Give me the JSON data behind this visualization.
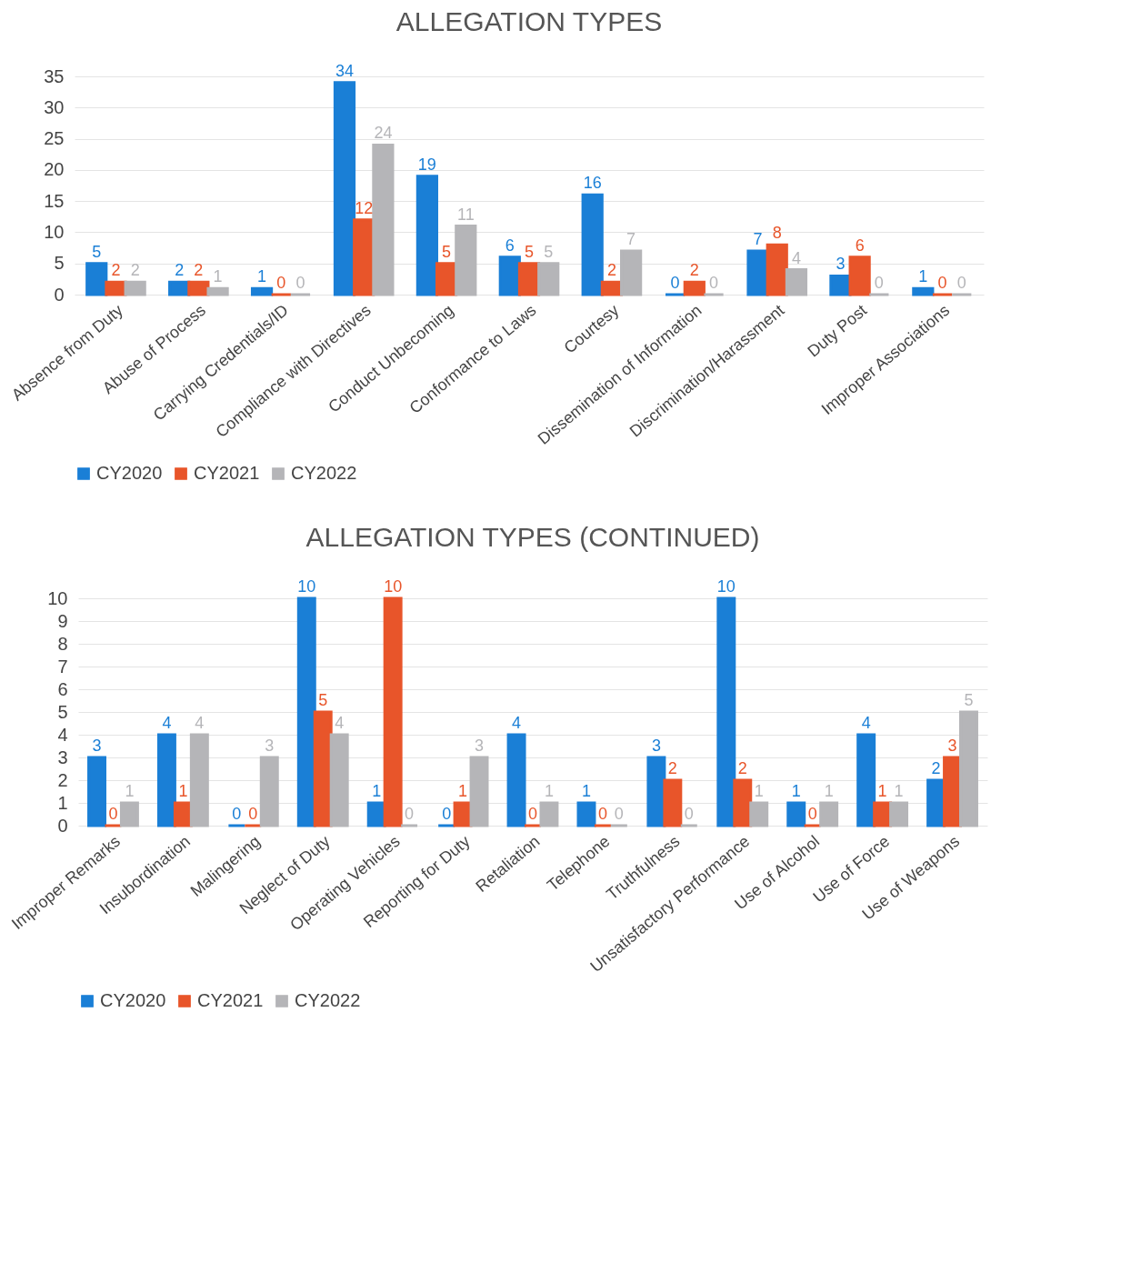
{
  "chart_data": [
    {
      "type": "bar",
      "title": "ALLEGATION TYPES",
      "categories": [
        "Absence from Duty",
        "Abuse of Process",
        "Carrying Credentials/ID",
        "Compliance with Directives",
        "Conduct Unbecoming",
        "Conformance to Laws",
        "Courtesy",
        "Dissemination of Information",
        "Discrimination/Harassment",
        "Duty Post",
        "Improper Associations"
      ],
      "series": [
        {
          "name": "CY2020",
          "color": "#1a7fd6",
          "values": [
            5,
            2,
            1,
            34,
            19,
            6,
            16,
            0,
            7,
            3,
            1
          ]
        },
        {
          "name": "CY2021",
          "color": "#e8552a",
          "values": [
            2,
            2,
            0,
            12,
            5,
            5,
            2,
            2,
            8,
            6,
            0
          ]
        },
        {
          "name": "CY2022",
          "color": "#b5b5b8",
          "values": [
            2,
            1,
            0,
            24,
            11,
            5,
            7,
            0,
            4,
            0,
            0
          ]
        }
      ],
      "ylim": [
        0,
        35
      ],
      "yticks": [
        0,
        5,
        10,
        15,
        20,
        25,
        30,
        35
      ],
      "grid": "y",
      "legend": "bottom",
      "data_labels": true
    },
    {
      "type": "bar",
      "title": "ALLEGATION TYPES (CONTINUED)",
      "categories": [
        "Improper Remarks",
        "Insubordination",
        "Malingering",
        "Neglect of Duty",
        "Operating Vehicles",
        "Reporting for Duty",
        "Retaliation",
        "Telephone",
        "Truthfulness",
        "Unsatisfactory Performance",
        "Use of Alcohol",
        "Use of Force",
        "Use of Weapons"
      ],
      "series": [
        {
          "name": "CY2020",
          "color": "#1a7fd6",
          "values": [
            3,
            4,
            0,
            10,
            1,
            0,
            4,
            1,
            3,
            10,
            1,
            4,
            2
          ]
        },
        {
          "name": "CY2021",
          "color": "#e8552a",
          "values": [
            0,
            1,
            0,
            5,
            10,
            1,
            0,
            0,
            2,
            2,
            0,
            1,
            3
          ]
        },
        {
          "name": "CY2022",
          "color": "#b5b5b8",
          "values": [
            1,
            4,
            3,
            4,
            0,
            3,
            1,
            0,
            0,
            1,
            1,
            1,
            5
          ]
        }
      ],
      "ylim": [
        0,
        10
      ],
      "yticks": [
        0,
        1,
        2,
        3,
        4,
        5,
        6,
        7,
        8,
        9,
        10
      ],
      "grid": "y",
      "legend": "bottom",
      "data_labels": true
    }
  ]
}
